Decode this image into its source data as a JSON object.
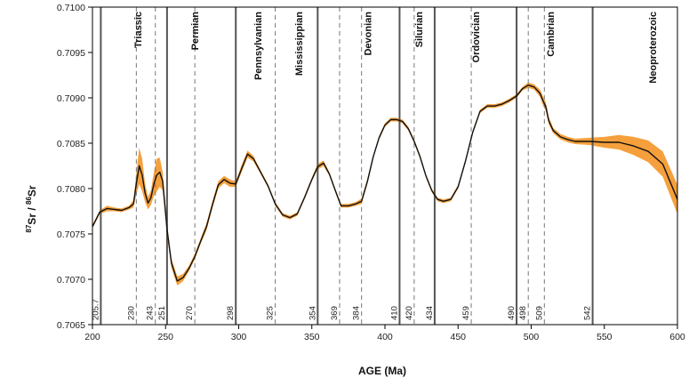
{
  "chart_data": {
    "type": "line",
    "title": "",
    "xlabel": "AGE (Ma)",
    "ylabel": {
      "pre_sup": "87",
      "mid1": "Sr / ",
      "mid_sup": "86",
      "post": "Sr"
    },
    "xlim": [
      200,
      600
    ],
    "ylim": [
      0.7065,
      0.71
    ],
    "x_ticks": [
      200,
      250,
      300,
      350,
      400,
      450,
      500,
      550,
      600
    ],
    "y_ticks": [
      "0.7065",
      "0.7070",
      "0.7075",
      "0.7080",
      "0.7085",
      "0.7090",
      "0.7095",
      "0.7100"
    ],
    "grid": false,
    "colors": {
      "band": "#f5a03c",
      "line": "#111111",
      "boundary": "#666666"
    },
    "boundaries": [
      {
        "age": 205.7,
        "label": "205.7",
        "style": "solid"
      },
      {
        "age": 230,
        "label": "230",
        "style": "dashed"
      },
      {
        "age": 243,
        "label": "243",
        "style": "dashed"
      },
      {
        "age": 251,
        "label": "251",
        "style": "solid"
      },
      {
        "age": 270,
        "label": "270",
        "style": "dashed"
      },
      {
        "age": 298,
        "label": "298",
        "style": "solid"
      },
      {
        "age": 325,
        "label": "325",
        "style": "dashed"
      },
      {
        "age": 354,
        "label": "354",
        "style": "solid"
      },
      {
        "age": 369,
        "label": "369",
        "style": "dashed"
      },
      {
        "age": 384,
        "label": "384",
        "style": "dashed"
      },
      {
        "age": 410,
        "label": "410",
        "style": "solid"
      },
      {
        "age": 420,
        "label": "420",
        "style": "dashed"
      },
      {
        "age": 434,
        "label": "434",
        "style": "solid"
      },
      {
        "age": 459,
        "label": "459",
        "style": "dashed"
      },
      {
        "age": 490,
        "label": "490",
        "style": "solid"
      },
      {
        "age": 498,
        "label": "498",
        "style": "dashed"
      },
      {
        "age": 509,
        "label": "509",
        "style": "dashed"
      },
      {
        "age": 542,
        "label": "542",
        "style": "solid"
      }
    ],
    "periods": [
      {
        "name": "Triassic",
        "age": 231
      },
      {
        "name": "Permian",
        "age": 270
      },
      {
        "name": "Pennsylvanian",
        "age": 313
      },
      {
        "name": "Mississippian",
        "age": 341
      },
      {
        "name": "Devonian",
        "age": 388
      },
      {
        "name": "Silurian",
        "age": 423
      },
      {
        "name": "Ordovician",
        "age": 462
      },
      {
        "name": "Cambrian",
        "age": 513
      },
      {
        "name": "Neoproterozoic",
        "age": 583
      }
    ],
    "series": [
      {
        "x": [
          200,
          205,
          210,
          215,
          220,
          225,
          228,
          230,
          232,
          234,
          236,
          238,
          240,
          242,
          244,
          246,
          248,
          251,
          254,
          258,
          262,
          266,
          270,
          274,
          278,
          282,
          286,
          290,
          294,
          298,
          302,
          306,
          310,
          315,
          320,
          325,
          330,
          335,
          340,
          345,
          350,
          354,
          358,
          362,
          366,
          370,
          375,
          380,
          384,
          388,
          392,
          396,
          400,
          404,
          408,
          412,
          416,
          420,
          424,
          428,
          432,
          436,
          440,
          445,
          450,
          455,
          460,
          465,
          470,
          475,
          480,
          485,
          490,
          494,
          498,
          502,
          506,
          508,
          510,
          512,
          515,
          520,
          525,
          530,
          540,
          550,
          560,
          570,
          580,
          590,
          600
        ],
        "y": [
          0.70758,
          0.70774,
          0.70778,
          0.70777,
          0.70776,
          0.70779,
          0.70783,
          0.70805,
          0.70825,
          0.70815,
          0.70795,
          0.70784,
          0.7079,
          0.70805,
          0.70815,
          0.70818,
          0.70808,
          0.70755,
          0.70718,
          0.70698,
          0.70702,
          0.70712,
          0.70725,
          0.70742,
          0.70758,
          0.70782,
          0.70804,
          0.7081,
          0.70806,
          0.70805,
          0.70822,
          0.70838,
          0.70833,
          0.70818,
          0.70803,
          0.70783,
          0.70771,
          0.70768,
          0.70772,
          0.7079,
          0.7081,
          0.70824,
          0.70828,
          0.70816,
          0.70798,
          0.70781,
          0.70781,
          0.70783,
          0.70786,
          0.70808,
          0.70835,
          0.70856,
          0.7087,
          0.70876,
          0.70876,
          0.70874,
          0.70866,
          0.70852,
          0.70835,
          0.70814,
          0.70798,
          0.70788,
          0.70786,
          0.70788,
          0.70802,
          0.7083,
          0.70862,
          0.70885,
          0.70891,
          0.70891,
          0.70893,
          0.70897,
          0.70902,
          0.7091,
          0.70914,
          0.70912,
          0.70905,
          0.70897,
          0.7089,
          0.70875,
          0.70864,
          0.70857,
          0.70854,
          0.70852,
          0.70852,
          0.70851,
          0.70851,
          0.70847,
          0.70841,
          0.70827,
          0.70788
        ],
        "band_half_width": [
          2e-05,
          2e-05,
          3e-05,
          2e-05,
          2e-05,
          2e-05,
          4e-05,
          0.00012,
          0.0002,
          0.00018,
          0.0001,
          7e-05,
          8e-05,
          0.00013,
          0.00018,
          0.00016,
          0.0001,
          6e-05,
          5e-05,
          5e-05,
          4e-05,
          3e-05,
          3e-05,
          3e-05,
          4e-05,
          4e-05,
          4e-05,
          4e-05,
          4e-05,
          3e-05,
          4e-05,
          4e-05,
          3e-05,
          2e-05,
          2e-05,
          2e-05,
          2e-05,
          2e-05,
          2e-05,
          2e-05,
          2e-05,
          3e-05,
          3e-05,
          2e-05,
          2e-05,
          2e-05,
          2e-05,
          2e-05,
          3e-05,
          3e-05,
          2e-05,
          2e-05,
          2e-05,
          2e-05,
          2e-05,
          2e-05,
          2e-05,
          2e-05,
          2e-05,
          2e-05,
          2e-05,
          2e-05,
          2e-05,
          2e-05,
          2e-05,
          2e-05,
          2e-05,
          2e-05,
          2e-05,
          2e-05,
          2e-05,
          2e-05,
          2e-05,
          2e-05,
          3e-05,
          3e-05,
          4e-05,
          5e-05,
          5e-05,
          4e-05,
          3e-05,
          3e-05,
          3e-05,
          3e-05,
          4e-05,
          6e-05,
          8e-05,
          0.0001,
          0.00012,
          0.00014,
          0.00016
        ]
      }
    ]
  }
}
